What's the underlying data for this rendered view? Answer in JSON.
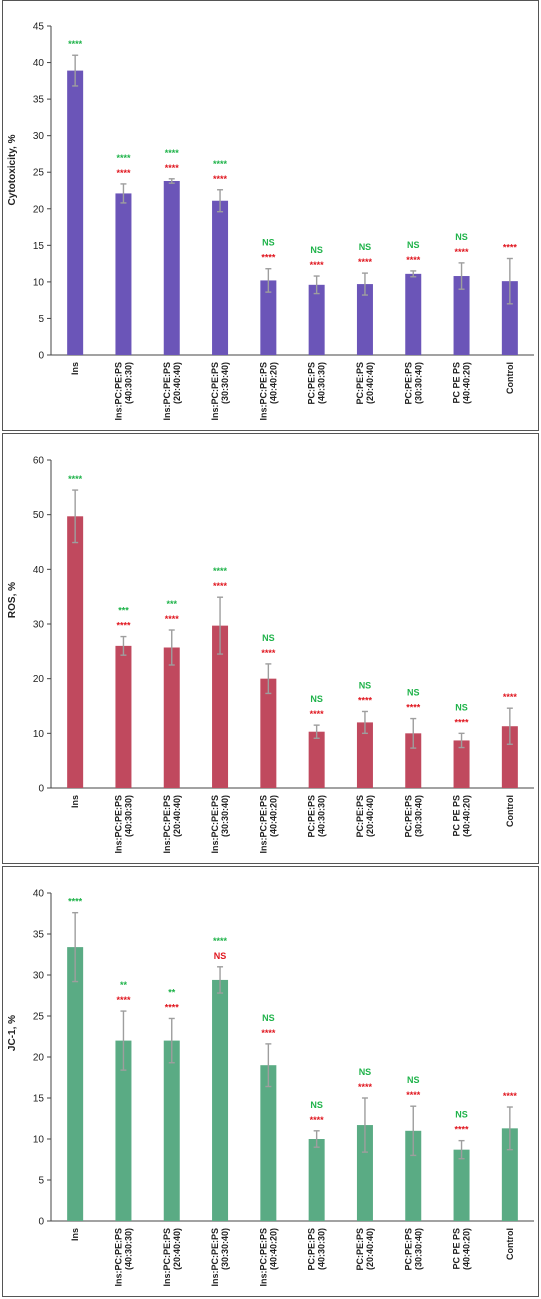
{
  "colors": {
    "green": "#1fb34a",
    "red": "#e0161f",
    "error": "#9e9e9e",
    "frame": "#555555"
  },
  "chart_data": [
    {
      "type": "bar",
      "ylabel": "Cytotoxicity, %",
      "ylim": [
        0,
        45
      ],
      "yticks": [
        0,
        5,
        10,
        15,
        20,
        25,
        30,
        35,
        40,
        45
      ],
      "bar_color": "#6b55b8",
      "categories": [
        [
          "Ins"
        ],
        [
          "Ins:PC:PE:PS",
          "(40:30:30)"
        ],
        [
          "Ins:PC:PE:PS",
          "(20:40:40)"
        ],
        [
          "Ins:PC:PE:PS",
          "(30:30:40)"
        ],
        [
          "Ins:PC:PE:PS",
          "(40:40:20)"
        ],
        [
          "PC:PE:PS",
          "(40:30:30)"
        ],
        [
          "PC:PE:PS",
          "(20:40:40)"
        ],
        [
          "PC:PE:PS",
          "(30:30:40)"
        ],
        [
          "PC PE PS",
          "(40:40:20)"
        ],
        [
          "Control"
        ]
      ],
      "values": [
        38.9,
        22.1,
        23.8,
        21.1,
        10.2,
        9.6,
        9.7,
        11.1,
        10.8,
        10.1
      ],
      "errors": [
        2.1,
        1.3,
        0.3,
        1.5,
        1.6,
        1.2,
        1.5,
        0.4,
        1.8,
        3.1
      ],
      "significance_green": [
        "****",
        "****",
        "****",
        "****",
        "NS",
        "NS",
        "NS",
        "NS",
        "NS",
        ""
      ],
      "significance_red": [
        "",
        "****",
        "****",
        "****",
        "****",
        "****",
        "****",
        "****",
        "****",
        "****"
      ]
    },
    {
      "type": "bar",
      "ylabel": "ROS, %",
      "ylim": [
        0,
        60
      ],
      "yticks": [
        0,
        10,
        20,
        30,
        40,
        50,
        60
      ],
      "bar_color": "#c0495e",
      "categories": [
        [
          "Ins"
        ],
        [
          "Ins:PC:PE:PS",
          "(40:30:30)"
        ],
        [
          "Ins:PC:PE:PS",
          "(20:40:40)"
        ],
        [
          "Ins:PC:PE:PS",
          "(30:30:40)"
        ],
        [
          "Ins:PC:PE:PS",
          "(40:40:20)"
        ],
        [
          "PC:PE:PS",
          "(40:30:30)"
        ],
        [
          "PC:PE:PS",
          "(20:40:40)"
        ],
        [
          "PC:PE:PS",
          "(30:30:40)"
        ],
        [
          "PC PE PS",
          "(40:40:20)"
        ],
        [
          "Control"
        ]
      ],
      "values": [
        49.7,
        26.0,
        25.7,
        29.7,
        20.0,
        10.3,
        12.0,
        10.0,
        8.7,
        11.3
      ],
      "errors": [
        4.8,
        1.7,
        3.2,
        5.2,
        2.7,
        1.2,
        2.0,
        2.7,
        1.3,
        3.3
      ],
      "significance_green": [
        "****",
        "***",
        "***",
        "****",
        "NS",
        "NS",
        "NS",
        "NS",
        "NS",
        ""
      ],
      "significance_red": [
        "",
        "****",
        "****",
        "****",
        "****",
        "****",
        "****",
        "****",
        "****",
        "****"
      ]
    },
    {
      "type": "bar",
      "ylabel": "JC-1, %",
      "ylim": [
        0,
        40
      ],
      "yticks": [
        0,
        5,
        10,
        15,
        20,
        25,
        30,
        35,
        40
      ],
      "bar_color": "#5aab84",
      "categories": [
        [
          "Ins"
        ],
        [
          "Ins:PC:PE:PS",
          "(40:30:30)"
        ],
        [
          "Ins:PC:PE:PS",
          "(20:40:40)"
        ],
        [
          "Ins:PC:PE:PS",
          "(30:30:40)"
        ],
        [
          "Ins:PC:PE:PS",
          "(40:40:20)"
        ],
        [
          "PC:PE:PS",
          "(40:30:30)"
        ],
        [
          "PC:PE:PS",
          "(20:40:40)"
        ],
        [
          "PC:PE:PS",
          "(30:30:40)"
        ],
        [
          "PC PE PS",
          "(40:40:20)"
        ],
        [
          "Control"
        ]
      ],
      "values": [
        33.4,
        22.0,
        22.0,
        29.4,
        19.0,
        10.0,
        11.7,
        11.0,
        8.7,
        11.3
      ],
      "errors": [
        4.2,
        3.6,
        2.7,
        1.6,
        2.6,
        1.0,
        3.3,
        3.0,
        1.1,
        2.6
      ],
      "significance_green": [
        "****",
        "**",
        "**",
        "****",
        "NS",
        "NS",
        "NS",
        "NS",
        "NS",
        ""
      ],
      "significance_red": [
        "",
        "****",
        "****",
        "NS",
        "****",
        "****",
        "****",
        "****",
        "****",
        "****"
      ]
    }
  ]
}
